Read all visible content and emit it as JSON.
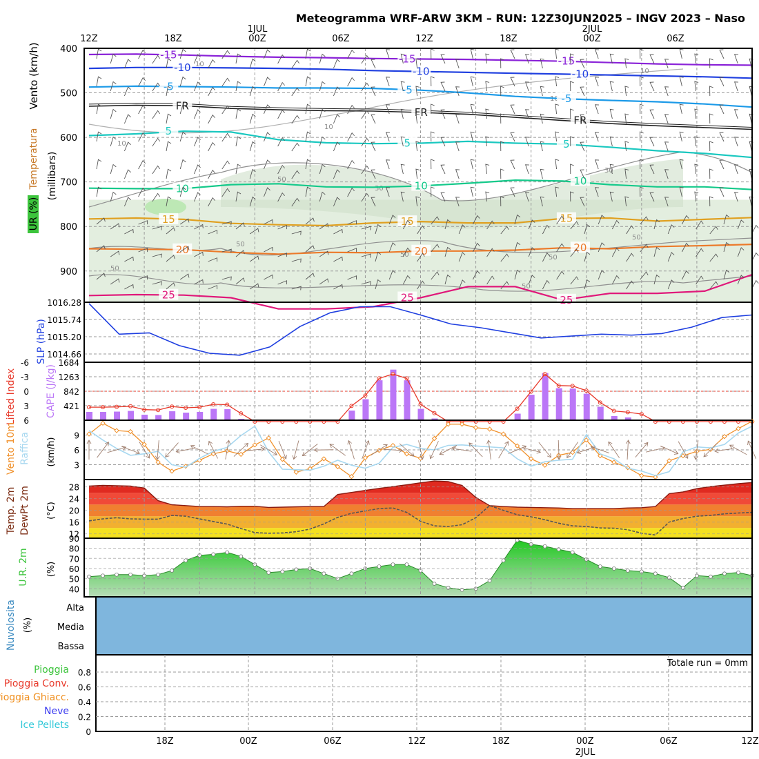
{
  "title": "Meteogramma WRF-ARW 3KM – RUN: 12Z30JUN2025 – INGV 2023 – Naso",
  "colors": {
    "frame": "#000000",
    "grid": "#9a9a9a",
    "rh_fill": "#e3eedf",
    "rh_fill_dark": "#cfdfc9",
    "rh_contour": "#909090",
    "slp": "#1f3fe0",
    "cape": "#bb77f7",
    "li": "#e8392a",
    "wind10": "#f0902a",
    "gust": "#a8d8f0",
    "t2m_dark": "#d02a12",
    "dewpt": "#555555",
    "rh2m": "#3cc43c",
    "cloud": "#7fb6dd"
  },
  "chart_data": [
    {
      "type": "heatmap",
      "panel": "upper_air",
      "ylabel_left": "Vento (km/h)",
      "ylabel_legend": [
        "Temperatura",
        "UR (%)"
      ],
      "ylabel": "(millibars)",
      "y_ticks": [
        400,
        500,
        600,
        700,
        800,
        900
      ],
      "ylim": [
        400,
        970
      ],
      "top_tick_labels": [
        "12Z",
        "18Z",
        "00Z",
        "06Z",
        "12Z",
        "18Z",
        "00Z",
        "06Z"
      ],
      "top_day_labels": [
        "1JUL",
        "2JUL"
      ],
      "temperature_isotherms": [
        {
          "label": "-15",
          "color": "#8a22d8",
          "levels_mb": [
            414,
            413,
            415,
            418,
            420,
            421,
            423,
            424,
            425,
            427,
            429,
            432,
            435,
            437,
            438
          ]
        },
        {
          "label": "-10",
          "color": "#2040e0",
          "levels_mb": [
            445,
            443,
            443,
            444,
            445,
            447,
            450,
            452,
            454,
            456,
            458,
            460,
            462,
            464,
            467
          ]
        },
        {
          "label": "-5",
          "color": "#1c9ae8",
          "levels_mb": [
            487,
            485,
            486,
            487,
            489,
            489,
            490,
            494,
            500,
            508,
            513,
            517,
            520,
            525,
            532
          ]
        },
        {
          "label": "FR",
          "color": "#222222",
          "levels_mb": [
            530,
            528,
            529,
            535,
            538,
            540,
            541,
            544,
            548,
            555,
            562,
            569,
            574,
            578,
            582
          ]
        },
        {
          "label": "5",
          "color": "#1ac8c0",
          "levels_mb": [
            596,
            592,
            586,
            588,
            605,
            612,
            614,
            613,
            609,
            613,
            615,
            622,
            630,
            636,
            645
          ]
        },
        {
          "label": "10",
          "color": "#14c98a",
          "levels_mb": [
            714,
            715,
            715,
            706,
            704,
            711,
            712,
            709,
            703,
            696,
            698,
            706,
            711,
            711,
            717
          ]
        },
        {
          "label": "15",
          "color": "#e0a020",
          "levels_mb": [
            783,
            781,
            784,
            793,
            796,
            798,
            792,
            789,
            792,
            792,
            782,
            781,
            788,
            784,
            780
          ]
        },
        {
          "label": "20",
          "color": "#ec7a2a",
          "levels_mb": [
            850,
            851,
            852,
            858,
            862,
            858,
            859,
            855,
            855,
            853,
            848,
            850,
            845,
            843,
            840
          ]
        },
        {
          "label": "25",
          "color": "#e0187a",
          "levels_mb": [
            955,
            953,
            954,
            960,
            985,
            985,
            980,
            960,
            935,
            935,
            965,
            950,
            950,
            945,
            908
          ]
        }
      ],
      "rh_contour_labels": [
        "10",
        "30",
        "50"
      ]
    },
    {
      "type": "line",
      "panel": "slp",
      "ylabel": "SLP (hPa)",
      "y_ticks": [
        1014.66,
        1015.2,
        1015.74,
        1016.28
      ],
      "ylim": [
        1014.4,
        1016.28
      ],
      "x_hours": [
        0,
        3,
        6,
        9,
        12,
        15,
        18,
        21,
        24,
        27,
        30,
        33,
        36,
        39,
        42,
        45,
        48,
        51,
        54,
        57,
        60,
        63,
        66
      ],
      "values": [
        1016.24,
        1015.28,
        1015.32,
        1014.92,
        1014.68,
        1014.62,
        1014.88,
        1015.52,
        1015.95,
        1016.14,
        1016.14,
        1015.88,
        1015.6,
        1015.48,
        1015.32,
        1015.16,
        1015.22,
        1015.28,
        1015.25,
        1015.3,
        1015.5,
        1015.8,
        1015.88
      ]
    },
    {
      "type": "bar",
      "panel": "cape_li",
      "ylabel_left": "Lifted Index",
      "ylabel_right": "CAPE (J/kg)",
      "li_ticks": [
        "-6",
        "-3",
        "0",
        "3",
        "6"
      ],
      "cape_ticks": [
        "421",
        "842",
        "1263",
        "1684"
      ],
      "x_hours": [
        0,
        3,
        6,
        9,
        12,
        15,
        18,
        21,
        24,
        27,
        30,
        33,
        36,
        39,
        42,
        45,
        48,
        51,
        54,
        57,
        60,
        63,
        66,
        69,
        72,
        75,
        78,
        81,
        84,
        87,
        90,
        93,
        96,
        99,
        102,
        105,
        108,
        111,
        114,
        117,
        120,
        123,
        126,
        129,
        132,
        135,
        138,
        141,
        144
      ],
      "cape_values": [
        240,
        240,
        250,
        270,
        160,
        150,
        260,
        220,
        240,
        330,
        320,
        40,
        0,
        0,
        0,
        0,
        0,
        0,
        0,
        280,
        610,
        1160,
        1470,
        1160,
        330,
        50,
        0,
        0,
        0,
        0,
        0,
        190,
        740,
        1370,
        930,
        920,
        770,
        390,
        120,
        80,
        20,
        0,
        0,
        0,
        0,
        0,
        0,
        0,
        0
      ]
    },
    {
      "type": "line",
      "panel": "wind10",
      "ylabel": "Vento 10m Raffica (km/h)",
      "y_ticks": [
        3,
        6,
        9
      ],
      "x_hours": [
        0,
        3,
        6,
        9,
        12,
        15,
        18,
        21,
        24,
        27,
        30,
        33,
        36,
        39,
        42,
        45,
        48,
        51,
        54,
        57,
        60,
        63,
        66,
        69,
        72,
        75,
        78,
        81,
        84,
        87,
        90,
        93,
        96,
        99,
        102,
        105,
        108,
        111,
        114,
        117,
        120,
        123,
        126,
        129,
        132,
        135,
        138,
        141,
        144
      ],
      "series": [
        {
          "name": "Vento 10m",
          "values": [
            9.2,
            11.4,
            9.9,
            9.7,
            7.1,
            3.5,
            1.7,
            2.7,
            3.9,
            5.2,
            5.8,
            5.1,
            7.0,
            8.4,
            4.1,
            1.5,
            2.2,
            4.2,
            2.6,
            0.6,
            4.4,
            5.9,
            6.9,
            5.2,
            4.3,
            8.3,
            11.2,
            11.2,
            10.5,
            10.2,
            9.2,
            6.8,
            4.2,
            2.9,
            4.9,
            5.5,
            8.0,
            4.8,
            3.5,
            2.4,
            0.8,
            0.5,
            3.8,
            4.8,
            5.7,
            6.1,
            8.7,
            10.3,
            11.8
          ]
        },
        {
          "name": "Raffica",
          "values": [
            9.9,
            8.0,
            6.3,
            4.9,
            5.2,
            5.7,
            3.0,
            2.5,
            4.3,
            5.7,
            6.5,
            8.9,
            10.8,
            5.6,
            2.1,
            2.0,
            1.9,
            2.7,
            3.9,
            2.9,
            2.3,
            3.3,
            6.5,
            7.1,
            6.3,
            6.0,
            6.9,
            7.0,
            6.8,
            6.6,
            6.4,
            4.2,
            2.7,
            3.6,
            3.9,
            4.1,
            9.1,
            5.2,
            4.2,
            2.3,
            1.7,
            0.8,
            1.6,
            5.6,
            6.6,
            6.4,
            7.1,
            9.4,
            10.8
          ]
        }
      ]
    },
    {
      "type": "area",
      "panel": "temp_dewpt",
      "ylabel": "Temp. 2m DewPt 2m (°C)",
      "y_ticks": [
        12,
        16,
        20,
        24,
        28
      ],
      "x_hours": [
        0,
        3,
        6,
        9,
        12,
        15,
        18,
        21,
        24,
        27,
        30,
        33,
        36,
        39,
        42,
        45,
        48,
        51,
        54,
        57,
        60,
        63,
        66,
        69,
        72,
        75,
        78,
        81,
        84,
        87,
        90,
        93,
        96,
        99,
        102,
        105,
        108,
        111,
        114,
        117,
        120,
        123,
        126,
        129,
        132,
        135,
        138,
        141,
        144
      ],
      "series": [
        {
          "name": "Temp. 2m",
          "values": [
            28.3,
            28.5,
            28.4,
            28.3,
            27.6,
            23.3,
            21.9,
            21.6,
            21.3,
            21.3,
            21.2,
            21.4,
            21.4,
            21.0,
            21.1,
            21.2,
            21.3,
            21.3,
            25.4,
            26.1,
            26.8,
            27.5,
            28.1,
            28.7,
            29.4,
            30.0,
            29.8,
            28.5,
            24.4,
            21.6,
            21.3,
            21.1,
            21.0,
            20.9,
            20.8,
            20.6,
            20.6,
            20.6,
            20.6,
            20.8,
            20.9,
            21.3,
            25.7,
            26.3,
            27.4,
            28.1,
            28.6,
            29.1,
            29.5
          ]
        },
        {
          "name": "DewPt 2m",
          "values": [
            16.4,
            17.1,
            17.5,
            17.1,
            17.0,
            17.0,
            18.3,
            18.0,
            17.1,
            16.2,
            15.3,
            13.8,
            12.4,
            12.2,
            12.3,
            12.7,
            13.6,
            15.4,
            17.6,
            19.0,
            19.8,
            20.6,
            20.8,
            19.3,
            16.3,
            14.7,
            14.5,
            15.1,
            17.5,
            21.6,
            20.0,
            18.5,
            17.8,
            16.8,
            15.6,
            14.7,
            14.5,
            14.0,
            13.9,
            13.4,
            12.2,
            11.6,
            16.0,
            17.2,
            18.0,
            18.3,
            18.8,
            19.1,
            19.3
          ]
        }
      ]
    },
    {
      "type": "area",
      "panel": "rh2m",
      "ylabel": "U.R. 2m (%)",
      "y_ticks": [
        40,
        50,
        60,
        70,
        80,
        90
      ],
      "x_hours": [
        0,
        3,
        6,
        9,
        12,
        15,
        18,
        21,
        24,
        27,
        30,
        33,
        36,
        39,
        42,
        45,
        48,
        51,
        54,
        57,
        60,
        63,
        66,
        69,
        72,
        75,
        78,
        81,
        84,
        87,
        90,
        93,
        96,
        99,
        102,
        105,
        108,
        111,
        114,
        117,
        120,
        123,
        126,
        129,
        132,
        135,
        138,
        141,
        144
      ],
      "values": [
        52,
        53,
        54,
        54,
        53,
        54,
        58,
        68,
        73,
        74,
        76,
        72,
        64,
        56,
        57,
        59,
        60,
        55,
        50,
        55,
        60,
        62,
        64,
        64,
        58,
        45,
        41,
        39,
        40,
        48,
        68,
        88,
        84,
        82,
        79,
        76,
        69,
        62,
        60,
        58,
        57,
        55,
        51,
        41,
        53,
        52,
        55,
        56,
        53
      ]
    },
    {
      "type": "bar",
      "panel": "cloud",
      "ylabel": "Nuvolosita (%)",
      "levels": [
        "Alta",
        "Media",
        "Bassa"
      ]
    },
    {
      "type": "bar",
      "panel": "precip",
      "legend": [
        "Pioggia",
        "Pioggia Conv.",
        "Pioggia Ghiacc.",
        "Neve",
        "Ice Pellets"
      ],
      "y_ticks": [
        "0",
        "0.2",
        "0.4",
        "0.6",
        "0.8"
      ],
      "x_tick_labels": [
        "18Z",
        "00Z",
        "06Z",
        "12Z",
        "18Z",
        "00Z",
        "06Z",
        "12Z"
      ],
      "x_day_label": "2JUL",
      "total_label": "Totale run = 0mm",
      "values": []
    }
  ]
}
